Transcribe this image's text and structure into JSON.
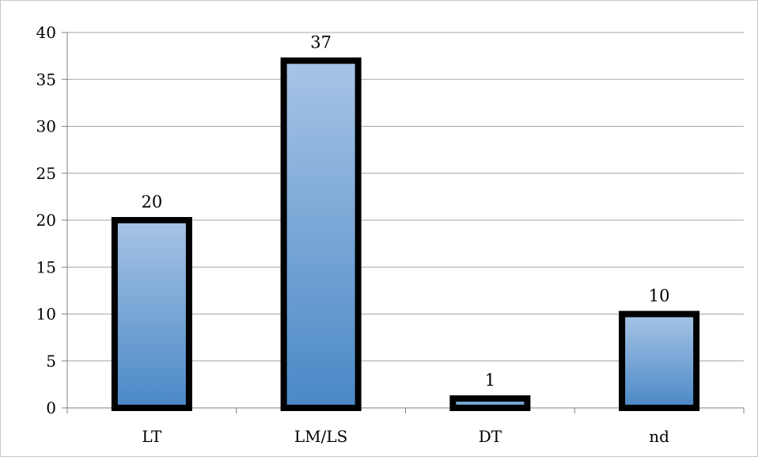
{
  "chart_data": {
    "type": "bar",
    "title": "",
    "xlabel": "",
    "ylabel": "",
    "categories": [
      "LT",
      "LM/LS",
      "DT",
      "nd"
    ],
    "values": [
      20,
      37,
      1,
      10
    ],
    "data_labels": [
      "20",
      "37",
      "1",
      "10"
    ],
    "ylim": [
      0,
      40
    ],
    "yticks": [
      0,
      5,
      10,
      15,
      20,
      25,
      30,
      35,
      40
    ],
    "ytick_labels": [
      "0",
      "5",
      "10",
      "15",
      "20",
      "25",
      "30",
      "35",
      "40"
    ],
    "grid": true,
    "legend": "none",
    "bar_fill_top": "#a7c4e6",
    "bar_fill_bottom": "#4a88c6",
    "bar_outline": "#000000",
    "grid_color": "#a6a6a6"
  }
}
